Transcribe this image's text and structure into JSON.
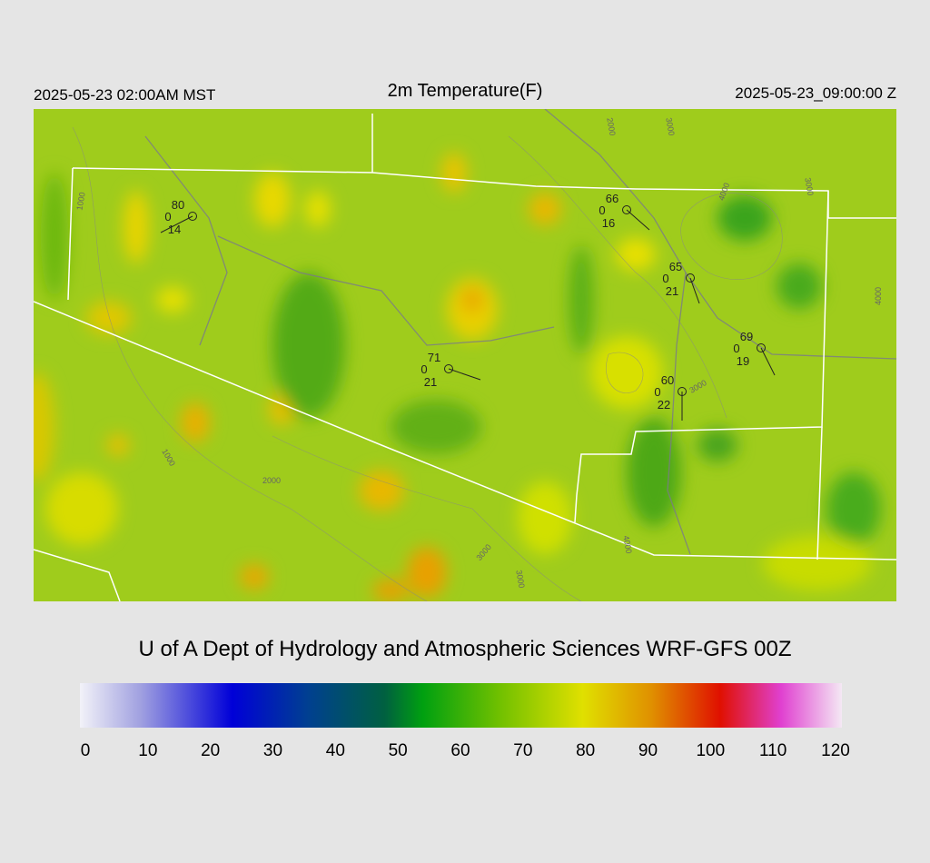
{
  "header": {
    "local_time": "2025-05-23 02:00AM MST",
    "title": "2m Temperature(F)",
    "utc_time": "2025-05-23_09:00:00 Z"
  },
  "stations": [
    {
      "temp": 80,
      "pressure": 0,
      "dewpoint": 14
    },
    {
      "temp": 66,
      "pressure": 0,
      "dewpoint": 16
    },
    {
      "temp": 65,
      "pressure": 0,
      "dewpoint": 21
    },
    {
      "temp": 71,
      "pressure": 0,
      "dewpoint": 21
    },
    {
      "temp": 69,
      "pressure": 0,
      "dewpoint": 19
    },
    {
      "temp": 60,
      "pressure": 0,
      "dewpoint": 22
    }
  ],
  "contour_labels": [
    1000,
    2000,
    3000,
    4000,
    3000,
    4000,
    1000,
    2000,
    3000,
    3000,
    4000,
    3000
  ],
  "credit": "U of A Dept of Hydrology and Atmospheric Sciences WRF-GFS 00Z",
  "colorbar": {
    "ticks": [
      0,
      10,
      20,
      30,
      40,
      50,
      60,
      70,
      80,
      90,
      100,
      110,
      120
    ]
  }
}
